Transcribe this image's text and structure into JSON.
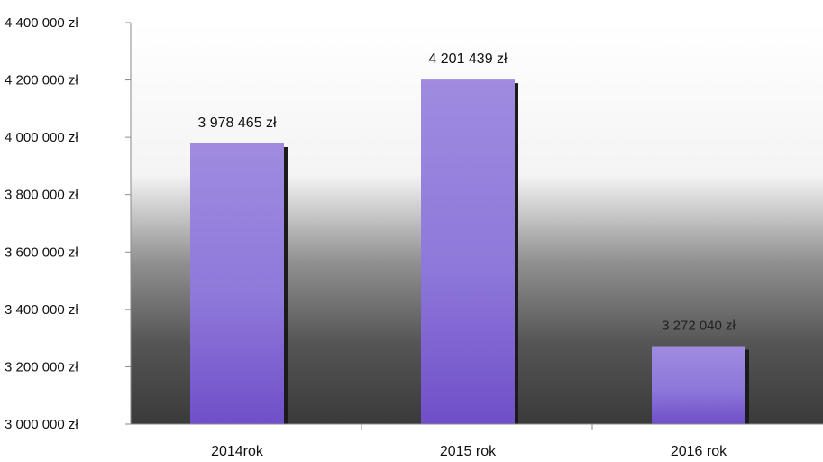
{
  "chart_data": {
    "type": "bar",
    "categories": [
      "2014rok",
      "2015 rok",
      "2016 rok"
    ],
    "values": [
      3978465,
      4201439,
      3272040
    ],
    "data_labels": [
      "3 978 465 zł",
      "4 201 439 zł",
      "3 272 040 zł"
    ],
    "ylim": [
      3000000,
      4400000
    ],
    "yticks": [
      3000000,
      3200000,
      3400000,
      3600000,
      3800000,
      4000000,
      4200000,
      4400000
    ],
    "ytick_labels": [
      "3 000 000 zł",
      "3 200 000 zł",
      "3 400 000 zł",
      "3 600 000 zł",
      "3 800 000 zł",
      "4 000 000 zł",
      "4 200 000 zł",
      "4 400 000 zł"
    ],
    "grid": false,
    "legend": "none",
    "colors": {
      "bar_top": "#a78ee6",
      "bar_mid": "#8d74d8",
      "bar_bottom": "#7a5bd0",
      "bar_shadow": "#1b1b1b",
      "background_top": "#ffffff",
      "background_bottom": "#3e3e3e",
      "axis": "#8a8a8a"
    }
  }
}
